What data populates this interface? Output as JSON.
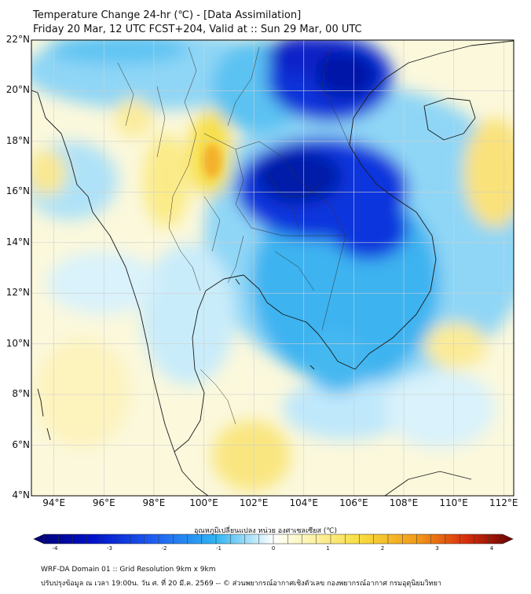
{
  "header": {
    "title": "Temperature Change 24-hr (℃) - [Data Assimilation]",
    "subtitle": "Friday 20 Mar, 12 UTC FCST+204, Valid at :: Sun 29 Mar, 00 UTC"
  },
  "map": {
    "lat_labels": [
      "22°N",
      "20°N",
      "18°N",
      "16°N",
      "14°N",
      "12°N",
      "10°N",
      "8°N",
      "6°N",
      "4°N"
    ],
    "lon_labels": [
      "94°E",
      "96°E",
      "98°E",
      "100°E",
      "102°E",
      "104°E",
      "106°E",
      "108°E",
      "110°E",
      "112°E"
    ],
    "lat_values": [
      22,
      20,
      18,
      16,
      14,
      12,
      10,
      8,
      6,
      4
    ],
    "lon_values": [
      94,
      96,
      98,
      100,
      102,
      104,
      106,
      108,
      110,
      112
    ],
    "extent": {
      "lon_min": 93.1,
      "lon_max": 112.4,
      "lat_min": 4,
      "lat_max": 22
    }
  },
  "colorbar": {
    "title": "อุณหภูมิเปลี่ยนแปลง หน่วย องศาเซลเซียส (℃)",
    "ticks": [
      "-4",
      "-3",
      "-2",
      "-1",
      "0",
      "1",
      "2",
      "3",
      "4"
    ],
    "min": -4,
    "max": 4
  },
  "footer": {
    "line1": "WRF-DA Domain 01 :: Grid Resolution 9km x 9km",
    "line2": "ปรับปรุงข้อมูล ณ เวลา 19:00น. วัน ศ. ที่ 20 มี.ค. 2569 -- © ส่วนพยากรณ์อากาศเชิงตัวเลข กองพยากรณ์อากาศ กรมอุตุนิยมวิทยา"
  },
  "colors": {
    "cold_extreme": "#000080",
    "cold_strong": "#0020d0",
    "cold_mid": "#2aa8f0",
    "cold_light": "#bfe8fb",
    "neutral": "#ffffff",
    "warm_light": "#fbf3b4",
    "warm_mid": "#f7de4d",
    "warm_strong": "#f3a51a",
    "hot_extreme": "#7a0000",
    "coastline": "#1a1a1a",
    "grid": "#cfcfcf"
  }
}
